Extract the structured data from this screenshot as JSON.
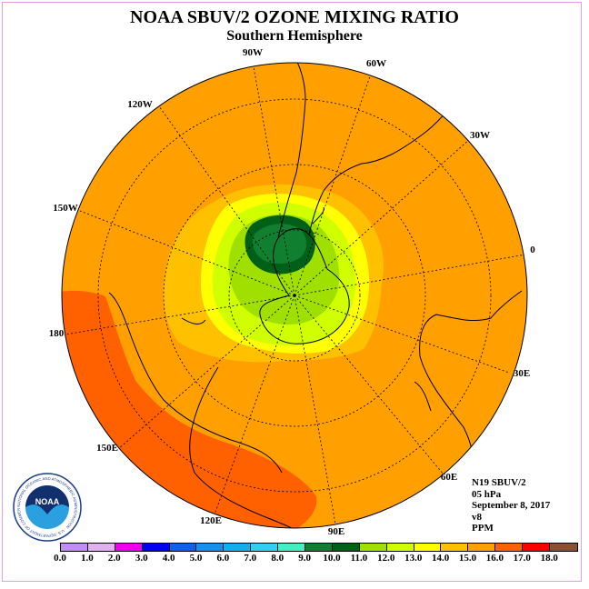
{
  "header": {
    "title": "NOAA SBUV/2 OZONE MIXING RATIO",
    "subtitle": "Southern Hemisphere"
  },
  "map": {
    "projection": "polar stereographic, south pole centered",
    "longitude_labels": [
      "90W",
      "60W",
      "30W",
      "0",
      "30E",
      "60E",
      "90E",
      "120E",
      "150E",
      "180",
      "150W",
      "120W"
    ],
    "ocean_background_level": "14.0-15.0",
    "ozone_feature": "local minimum (8.0-10.0 PPM) near the Antarctic Peninsula, surrounded by rings of increasing mixing ratio; higher values (15.0-16.0) over the Pacific sector"
  },
  "info": {
    "instrument": "N19 SBUV/2",
    "level": "05 hPa",
    "date": "September 8, 2017",
    "version": "v8",
    "units": "PPM"
  },
  "colorbar": {
    "labels": [
      "0.0",
      "1.0",
      "2.0",
      "3.0",
      "4.0",
      "5.0",
      "6.0",
      "7.0",
      "8.0",
      "9.0",
      "10.0",
      "11.0",
      "12.0",
      "13.0",
      "14.0",
      "15.0",
      "16.0",
      "17.0",
      "18.0"
    ],
    "colors": [
      "#c090f0",
      "#e0b0f0",
      "#f000f0",
      "#0000f0",
      "#1060f0",
      "#1490f0",
      "#10b0f0",
      "#30d0f0",
      "#40f0c0",
      "#108030",
      "#006018",
      "#a0e000",
      "#d0ff00",
      "#ffff00",
      "#ffc000",
      "#ffa000",
      "#ff6000",
      "#ff0000",
      "#8b5030"
    ]
  },
  "logo": {
    "text": "NOAA",
    "ring_text": "NATIONAL OCEANIC AND ATMOSPHERIC ADMINISTRATION · U.S. DEPARTMENT OF COMMERCE"
  }
}
